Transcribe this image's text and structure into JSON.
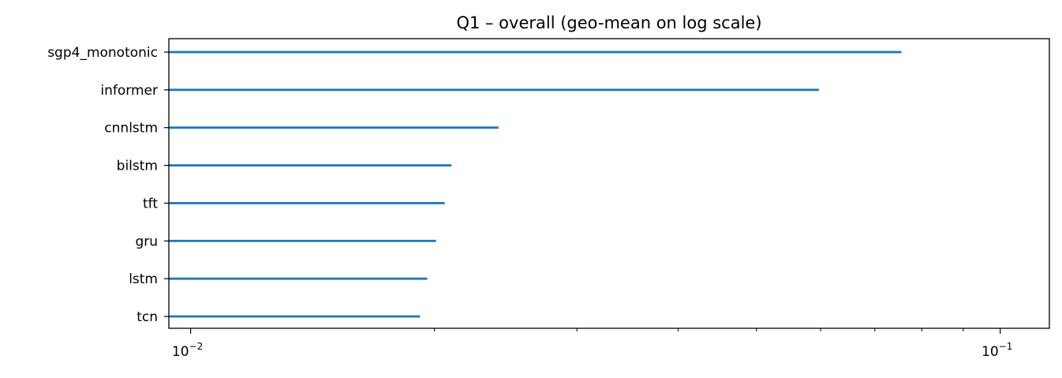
{
  "chart_data": {
    "type": "bar",
    "orientation": "horizontal",
    "title": "Q1 – overall (geo-mean on log scale)",
    "xlabel": "",
    "ylabel": "",
    "x_scale": "log",
    "xlim": [
      0.0094,
      0.115
    ],
    "categories": [
      "sgp4_monotonic",
      "informer",
      "cnnlstm",
      "bilstm",
      "tft",
      "gru",
      "lstm",
      "tcn"
    ],
    "values": [
      0.0755,
      0.0597,
      0.024,
      0.021,
      0.0206,
      0.0201,
      0.0196,
      0.0192
    ],
    "x_ticks": [
      {
        "value": 0.01,
        "label": "10",
        "exponent": "−2"
      },
      {
        "value": 0.1,
        "label": "10",
        "exponent": "−1"
      }
    ],
    "grid": false,
    "legend": "none",
    "colors": {
      "series": "#1f77b4",
      "axes": "#000000",
      "background": "#ffffff"
    }
  }
}
